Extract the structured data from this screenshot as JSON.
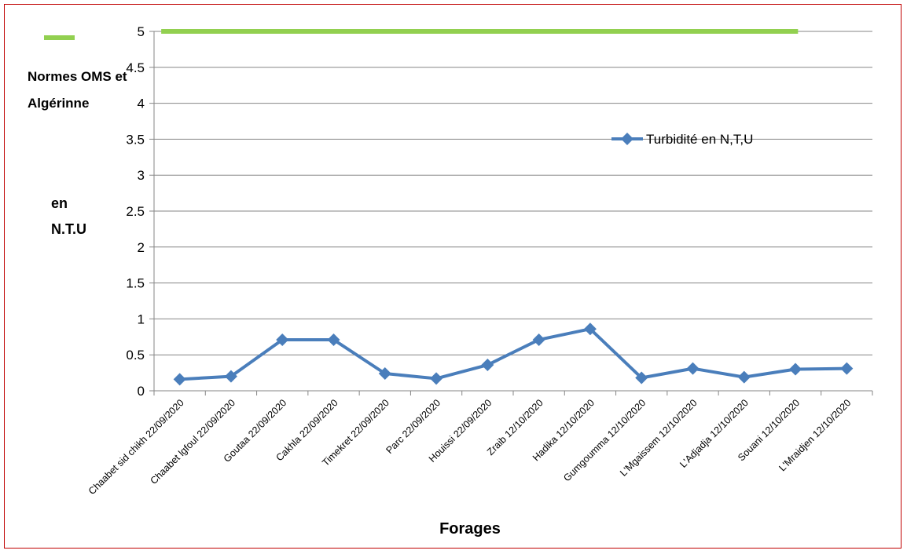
{
  "chart_data": {
    "type": "line",
    "categories": [
      "Chaabet sid chikh  22/09/2020",
      "Chaabet lgfoul  22/09/2020",
      "Goutaa 22/09/2020",
      "Cakhla 22/09/2020",
      "Timekret 22/09/2020",
      "Parc 22/09/2020",
      "Houissi 22/09/2020",
      "Zraib 12/10/2020",
      "Hadika 12/10/2020",
      "Gumgoumma 12/10/2020",
      "L'Mgaissem 12/10/2020",
      "L'Adjadja 12/10/2020",
      "Souani 12/10/2020",
      "L'Mraidjen 12/10/2020"
    ],
    "series": [
      {
        "name": "Turbidité en N,T,U",
        "color": "#4a7ebb",
        "marker": "diamond",
        "values": [
          0.16,
          0.2,
          0.71,
          0.71,
          0.24,
          0.17,
          0.36,
          0.71,
          0.86,
          0.18,
          0.31,
          0.19,
          0.3,
          0.31
        ]
      }
    ],
    "reference_line": {
      "label_line1": "Normes OMS et",
      "label_line2": "Algérinne",
      "value": 5,
      "color": "#92d050"
    },
    "xlabel": "Forages",
    "ylabel_line1": "en",
    "ylabel_line2": "N.T.U",
    "ylim": [
      0,
      5
    ],
    "yticks": [
      "0",
      "0.5",
      "1",
      "1.5",
      "2",
      "2.5",
      "3",
      "3.5",
      "4",
      "4.5",
      "5"
    ],
    "grid": true,
    "legend_position": "top-right",
    "border_color": "#c00000"
  }
}
